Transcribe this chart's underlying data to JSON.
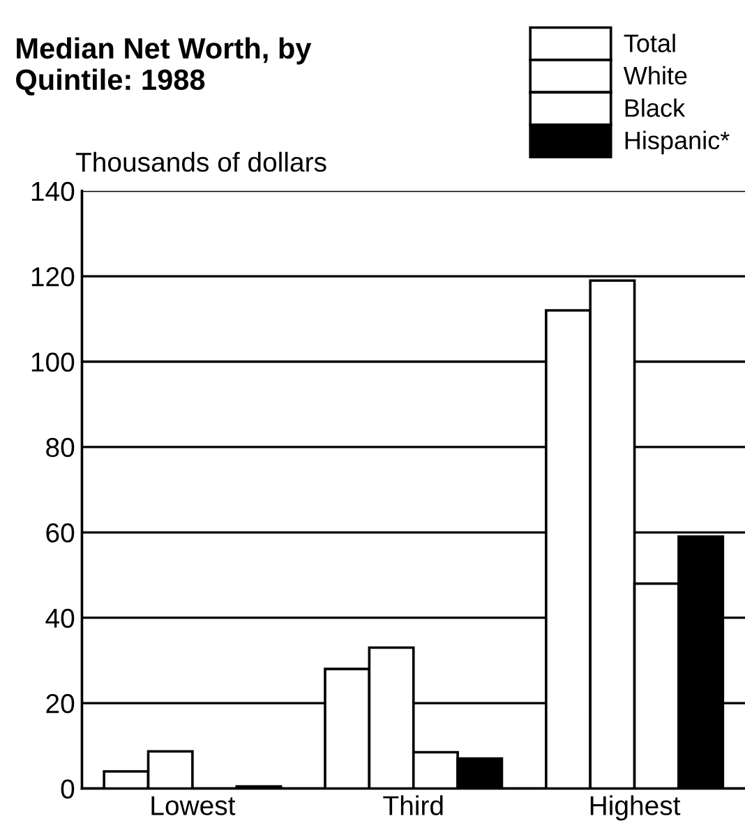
{
  "chart_data": {
    "type": "bar",
    "title": "Median Net Worth, by\nQuintile: 1988",
    "ylabel": "Thousands of dollars",
    "categories": [
      "Lowest",
      "Third",
      "Highest"
    ],
    "series": [
      {
        "name": "Total",
        "color": "#ffffff",
        "values": [
          4,
          28,
          112
        ]
      },
      {
        "name": "White",
        "color": "#ffffff",
        "values": [
          8.7,
          33,
          119
        ]
      },
      {
        "name": "Black",
        "color": "#ffffff",
        "values": [
          null,
          8.5,
          48
        ]
      },
      {
        "name": "Hispanic*",
        "color": "#000000",
        "values": [
          0.5,
          7,
          59
        ]
      }
    ],
    "ylim": [
      0,
      140
    ],
    "yticks": [
      0,
      20,
      40,
      60,
      80,
      100,
      120,
      140
    ],
    "grid": "y",
    "legend": "top right"
  }
}
